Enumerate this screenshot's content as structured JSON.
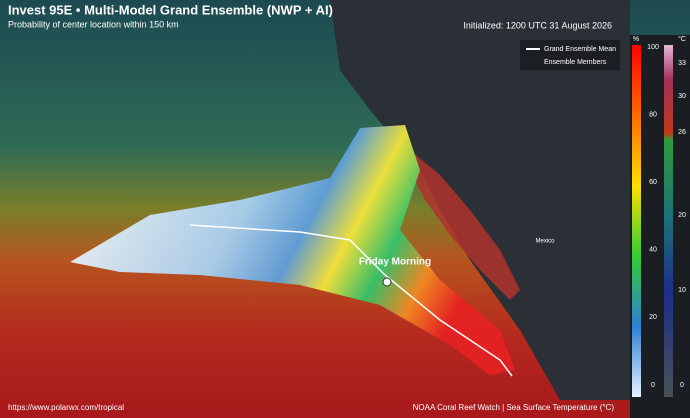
{
  "header": {
    "title": "Invest 95E • Multi-Model Grand Ensemble (NWP + AI)",
    "subtitle": "Probability of center location within 150 km",
    "initialized": "Initialized: 1200 UTC 31 August 2026"
  },
  "legend": {
    "items": [
      "Grand Ensemble Mean",
      "Ensemble Members"
    ]
  },
  "map_labels": {
    "annotation": "Friday Morning",
    "country": "Mexico"
  },
  "probability_colorbar": {
    "unit": "%",
    "ticks": [
      100,
      80,
      60,
      40,
      20,
      0
    ]
  },
  "sst_colorbar": {
    "unit": "°C",
    "ticks": [
      33,
      30,
      26,
      20,
      10,
      0
    ]
  },
  "footer": {
    "url": "https://www.polarwx.com/tropical",
    "source": "NOAA Coral Reef Watch | Sea Surface Temperature (°C)"
  }
}
